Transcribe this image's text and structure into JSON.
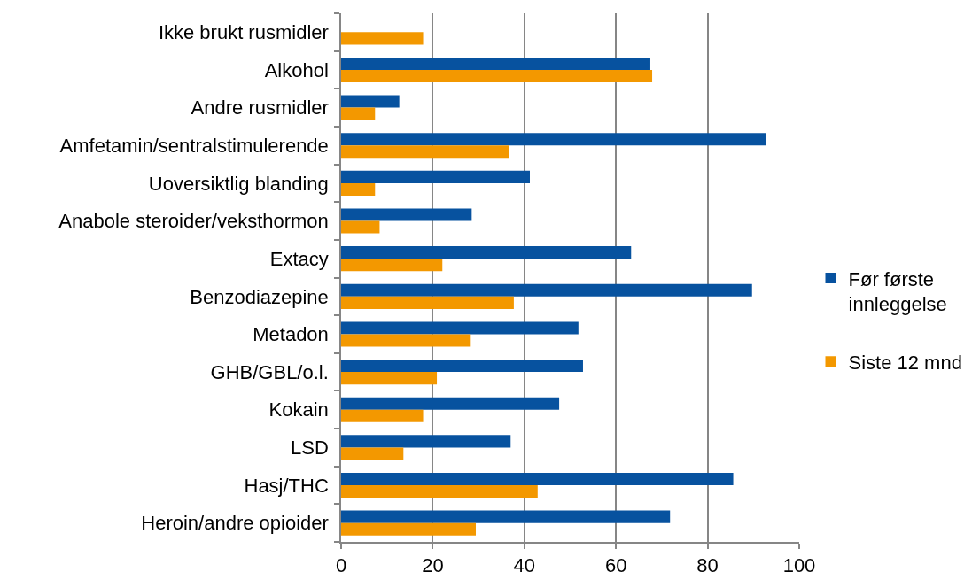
{
  "chart_data": {
    "type": "bar",
    "orientation": "horizontal",
    "categories": [
      "Ikke brukt rusmidler",
      "Alkohol",
      "Andre rusmidler",
      "Amfetamin/sentralstimulerende",
      "Uoversiktlig blanding",
      "Anabole steroider/veksthormon",
      "Extacy",
      "Benzodiazepine",
      "Metadon",
      "GHB/GBL/o.l.",
      "Kokain",
      "LSD",
      "Hasj/THC",
      "Heroin/andre opioider"
    ],
    "series": [
      {
        "name": "Før første innleggelse",
        "color": "#07529f",
        "values": [
          null,
          67.5,
          12.7,
          92.8,
          41.2,
          28.5,
          63.3,
          89.7,
          51.8,
          52.8,
          47.6,
          37.0,
          85.6,
          71.8
        ]
      },
      {
        "name": "Siste 12 mnd",
        "color": "#f39800",
        "values": [
          17.9,
          67.9,
          7.4,
          36.7,
          7.4,
          8.4,
          22.1,
          37.7,
          28.3,
          20.9,
          17.9,
          13.6,
          42.9,
          29.4
        ]
      }
    ],
    "xlim": [
      0,
      100
    ],
    "xticks": [
      0,
      20,
      40,
      60,
      80,
      100
    ],
    "grid": "x",
    "legend": "right"
  }
}
